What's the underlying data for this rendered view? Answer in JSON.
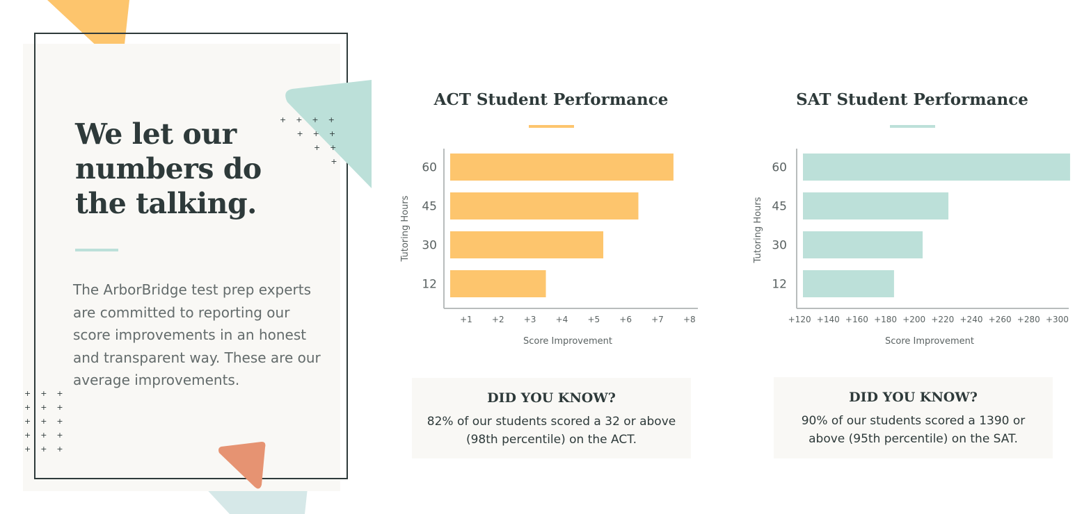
{
  "intro": {
    "headline": [
      "We let our",
      "numbers do",
      "the talking."
    ],
    "body": "The ArborBridge test prep experts are committed to reporting our score improvements in an honest and transparent way. These are our average improvements."
  },
  "colors": {
    "act_bar": "#fdc56d",
    "sat_bar": "#bce0d9",
    "orange": "#fdc56d",
    "mint": "#bce0d9",
    "coral": "#e69372",
    "pale_blue": "#d6e8e8",
    "dark": "#2e3a3a"
  },
  "act": {
    "title": "ACT Student Performance",
    "did_you_know_heading": "DID YOU KNOW?",
    "did_you_know_text": "82% of our students scored a 32 or above (98th percentile) on the ACT."
  },
  "sat": {
    "title": "SAT Student Performance",
    "did_you_know_heading": "DID YOU KNOW?",
    "did_you_know_text": "90% of our students scored a 1390 or above (95th percentile) on the SAT."
  },
  "chart_data": [
    {
      "type": "bar",
      "orientation": "horizontal",
      "title": "ACT Student Performance",
      "categories": [
        "60",
        "45",
        "30",
        "12"
      ],
      "values": [
        7.5,
        6.4,
        5.3,
        3.5
      ],
      "xlabel": "Score Improvement",
      "ylabel": "Tutoring Hours",
      "xlim": [
        0.5,
        8.2
      ],
      "xticks": [
        1,
        2,
        3,
        4,
        5,
        6,
        7,
        8
      ],
      "xtick_labels": [
        "+1",
        "+2",
        "+3",
        "+4",
        "+5",
        "+6",
        "+7",
        "+8"
      ],
      "grid": false
    },
    {
      "type": "bar",
      "orientation": "horizontal",
      "title": "SAT Student Performance",
      "categories": [
        "60",
        "45",
        "30",
        "12"
      ],
      "values": [
        309,
        224,
        206,
        186
      ],
      "xlabel": "Score Improvement",
      "ylabel": "Tutoring Hours",
      "xlim": [
        118,
        310
      ],
      "xticks": [
        120,
        140,
        160,
        180,
        200,
        220,
        240,
        260,
        280,
        300
      ],
      "xtick_labels": [
        "+120",
        "+140",
        "+160",
        "+180",
        "+200",
        "+220",
        "+240",
        "+260",
        "+280",
        "+300"
      ],
      "grid": false
    }
  ]
}
